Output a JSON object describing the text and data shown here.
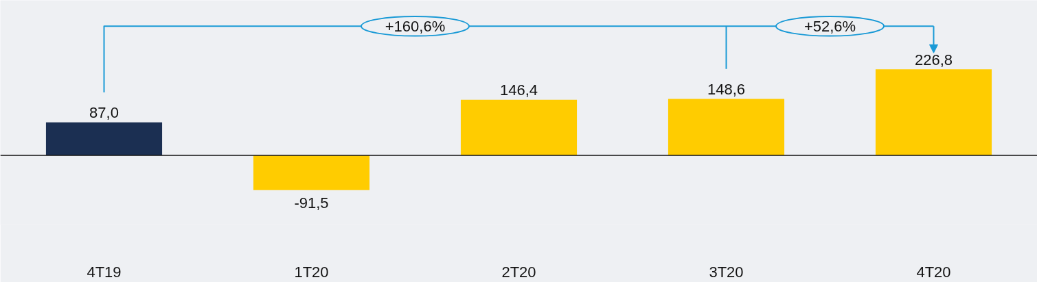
{
  "chart_data": {
    "type": "bar",
    "categories": [
      "4T19",
      "1T20",
      "2T20",
      "3T20",
      "4T20"
    ],
    "values": [
      87.0,
      -91.5,
      146.4,
      148.6,
      226.8
    ],
    "colors": [
      "#1b2f52",
      "#ffcc00",
      "#ffcc00",
      "#ffcc00",
      "#ffcc00"
    ],
    "value_labels": [
      "87,0",
      "-91,5",
      "146,4",
      "148,6",
      "226,8"
    ],
    "annotations": [
      "+160,6%",
      "+52,6%"
    ]
  }
}
